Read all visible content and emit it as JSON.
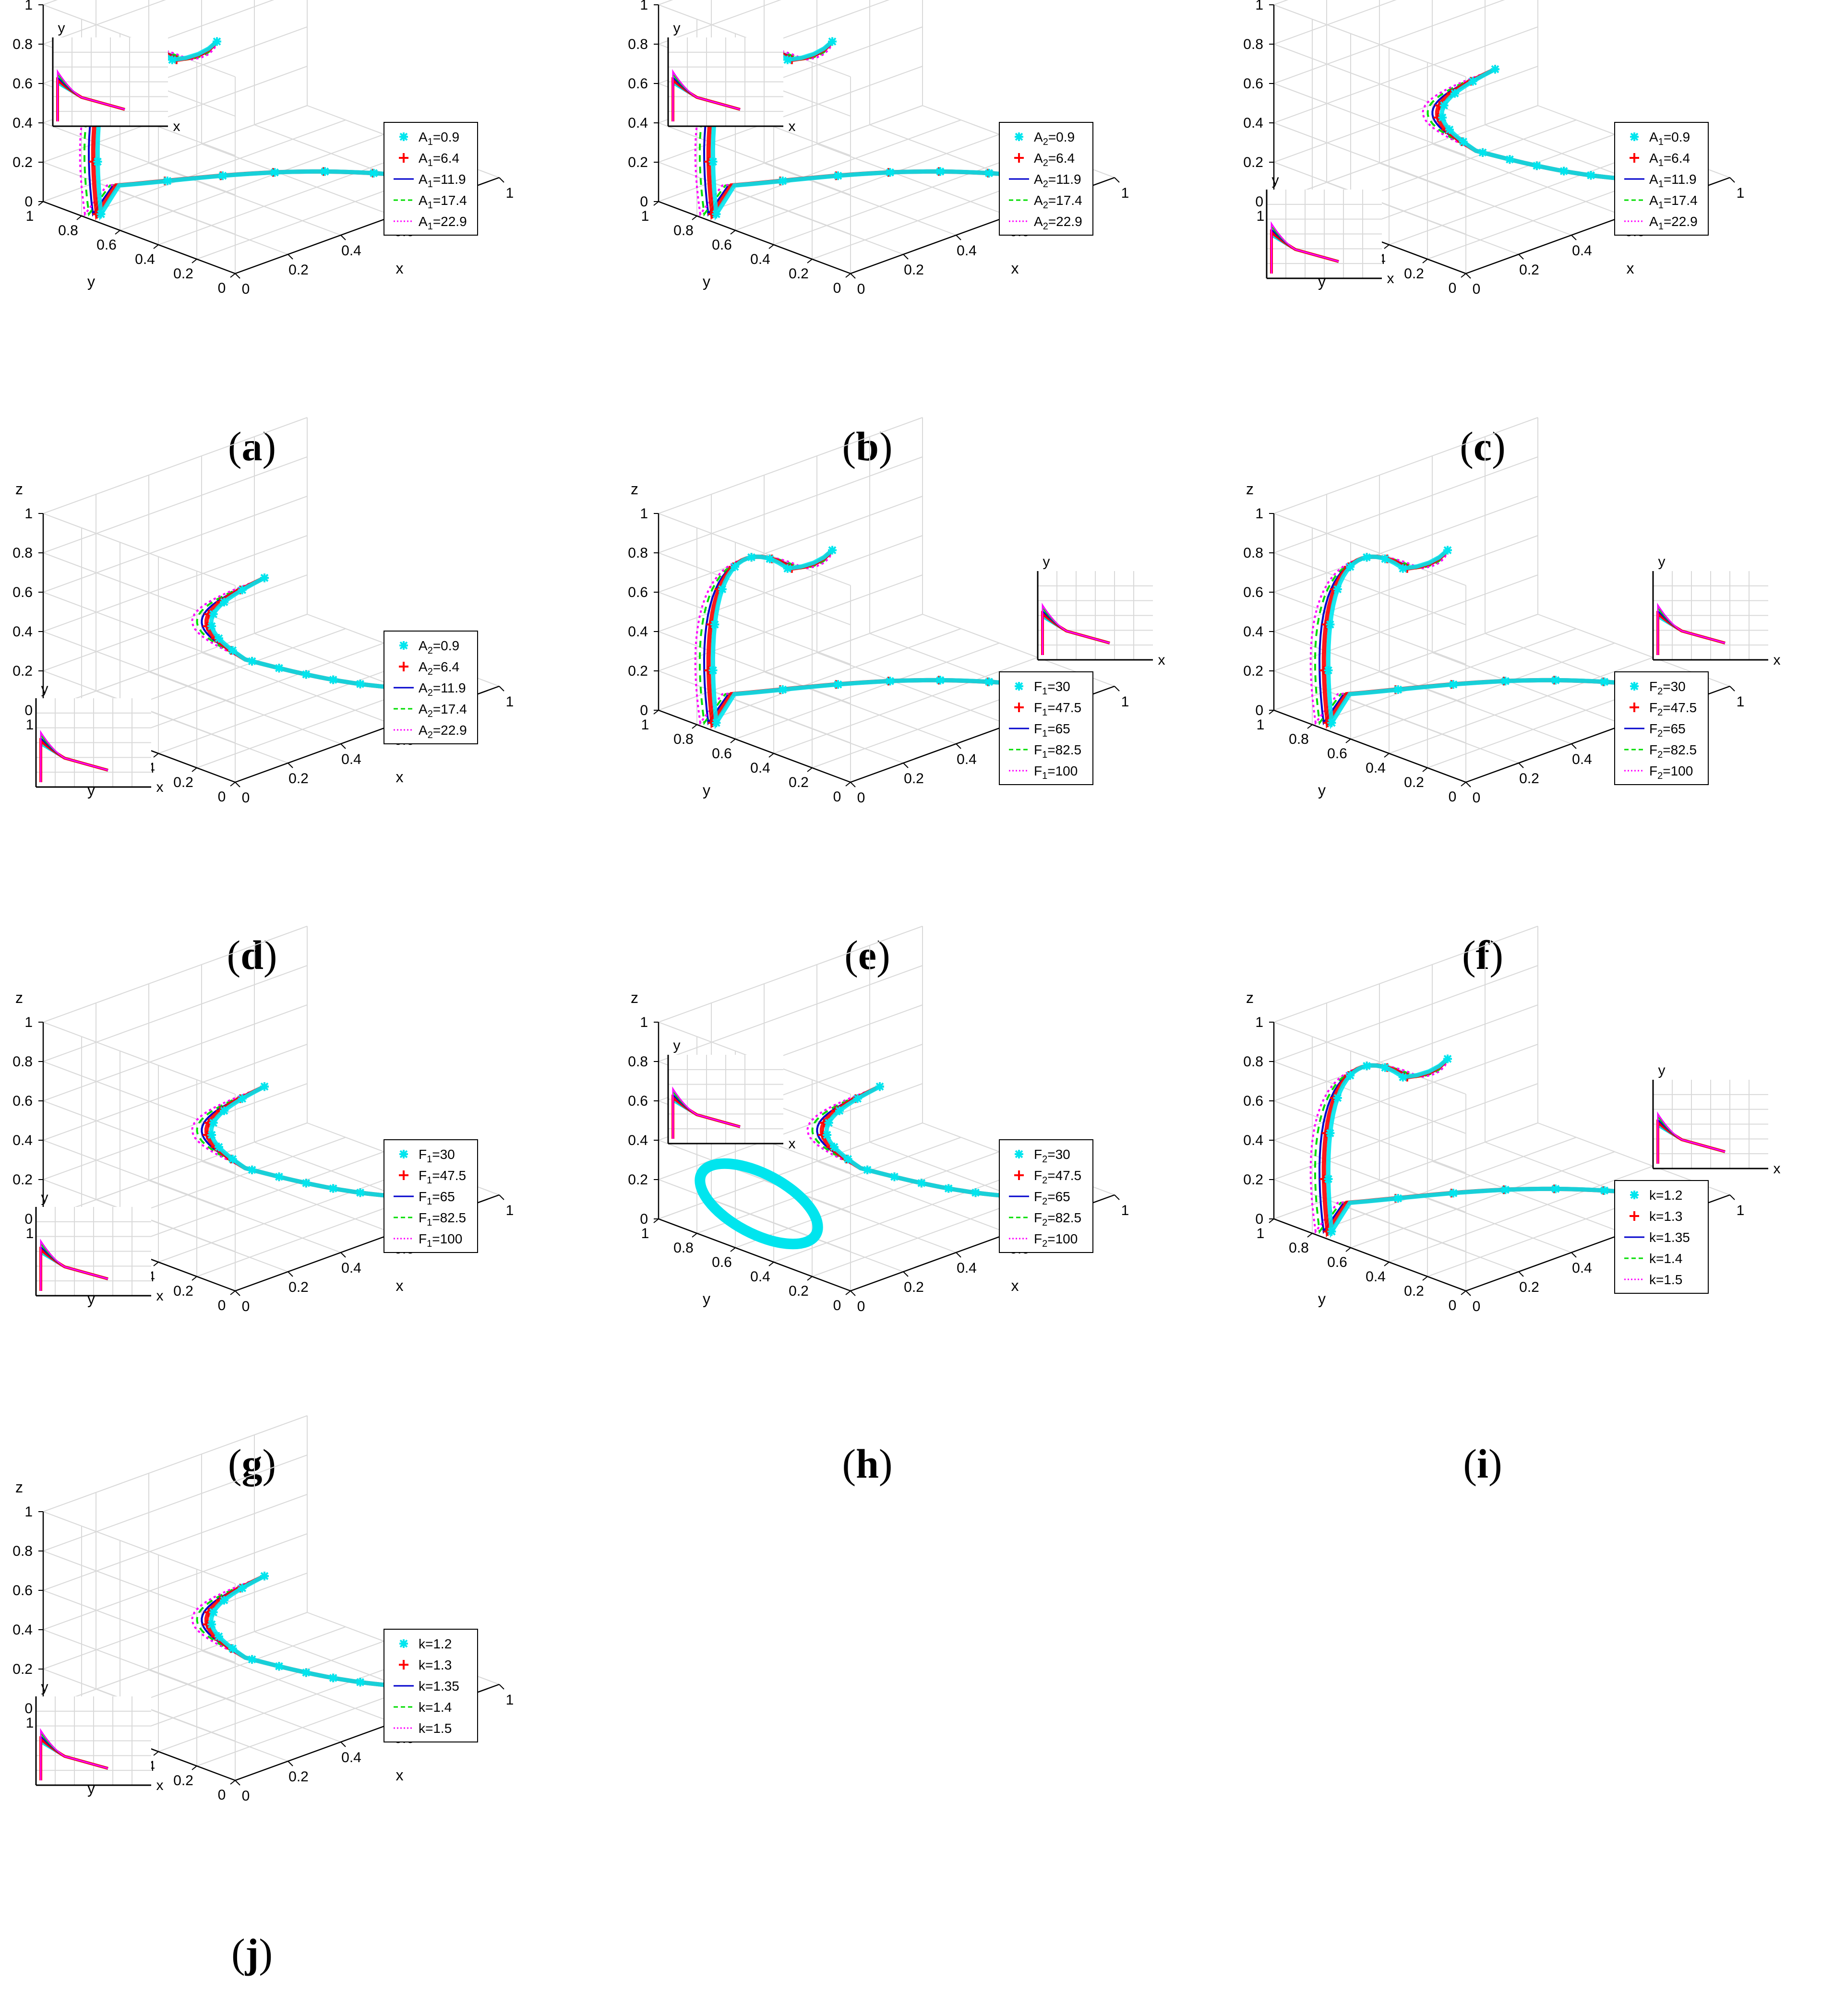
{
  "figure": {
    "panels": [
      {
        "id": "a",
        "caption_letter": "a",
        "param": "A",
        "sub": "1",
        "legend": [
          "0.9",
          "6.4",
          "11.9",
          "17.4",
          "22.9"
        ],
        "shape": "loop",
        "inset": "top-left",
        "legend_pos": "right",
        "variant": "a"
      },
      {
        "id": "b",
        "caption_letter": "b",
        "param": "A",
        "sub": "2",
        "legend": [
          "0.9",
          "6.4",
          "11.9",
          "17.4",
          "22.9"
        ],
        "shape": "loop",
        "inset": "top-left",
        "legend_pos": "right",
        "variant": "b"
      },
      {
        "id": "c",
        "caption_letter": "c",
        "param": "A",
        "sub": "1",
        "legend": [
          "0.9",
          "6.4",
          "11.9",
          "17.4",
          "22.9"
        ],
        "shape": "hook",
        "inset": "bottom-left",
        "legend_pos": "right",
        "variant": "c"
      },
      {
        "id": "d",
        "caption_letter": "d",
        "param": "A",
        "sub": "2",
        "legend": [
          "0.9",
          "6.4",
          "11.9",
          "17.4",
          "22.9"
        ],
        "shape": "hook",
        "inset": "bottom-left",
        "legend_pos": "right",
        "variant": "d"
      },
      {
        "id": "e",
        "caption_letter": "e",
        "param": "F",
        "sub": "1",
        "legend": [
          "30",
          "47.5",
          "65",
          "82.5",
          "100"
        ],
        "shape": "loop",
        "inset": "top-right",
        "legend_pos": "right-low",
        "variant": "e"
      },
      {
        "id": "f",
        "caption_letter": "f",
        "param": "F",
        "sub": "2",
        "legend": [
          "30",
          "47.5",
          "65",
          "82.5",
          "100"
        ],
        "shape": "loop",
        "inset": "top-right",
        "legend_pos": "right-low",
        "variant": "f"
      },
      {
        "id": "g",
        "caption_letter": "g",
        "param": "F",
        "sub": "1",
        "legend": [
          "30",
          "47.5",
          "65",
          "82.5",
          "100"
        ],
        "shape": "hook",
        "inset": "bottom-left",
        "legend_pos": "right",
        "variant": "g"
      },
      {
        "id": "h",
        "caption_letter": "h",
        "param": "F",
        "sub": "2",
        "legend": [
          "30",
          "47.5",
          "65",
          "82.5",
          "100"
        ],
        "shape": "hook-ellipse",
        "inset": "top-left",
        "legend_pos": "right",
        "variant": "h"
      },
      {
        "id": "i",
        "caption_letter": "i",
        "param": "k",
        "sub": "",
        "legend": [
          "1.2",
          "1.3",
          "1.35",
          "1.4",
          "1.5"
        ],
        "shape": "loop",
        "inset": "top-right",
        "legend_pos": "right-low",
        "variant": "i"
      },
      {
        "id": "j",
        "caption_letter": "j",
        "param": "k",
        "sub": "",
        "legend": [
          "1.2",
          "1.3",
          "1.35",
          "1.4",
          "1.5"
        ],
        "shape": "hook",
        "inset": "bottom-left",
        "legend_pos": "right",
        "variant": "j"
      }
    ]
  },
  "axes": {
    "xlabel": "x",
    "ylabel": "y",
    "zlabel": "z",
    "ticks": [
      "0",
      "0.2",
      "0.4",
      "0.6",
      "0.8",
      "1"
    ],
    "xlim": [
      0,
      1
    ],
    "ylim": [
      0,
      1
    ],
    "zlim": [
      0,
      1
    ],
    "grid": true
  },
  "inset_axes": {
    "xlabel": "x",
    "ylabel": "y"
  },
  "colors": {
    "cyan": "#00E5EE",
    "red": "#FF0000",
    "blue": "#0000CC",
    "green": "#00DD00",
    "magenta": "#FF00FF",
    "grid": "#d9d9d9",
    "axis": "#000000"
  },
  "chart_data": [
    {
      "type": "line",
      "panel": "a",
      "xlabel": "x",
      "ylabel": "y",
      "zlabel": "z",
      "xlim": [
        0,
        1
      ],
      "ylim": [
        0,
        1
      ],
      "zlim": [
        0,
        1
      ],
      "series_names": [
        "A1=0.9",
        "A1=6.4",
        "A1=11.9",
        "A1=17.4",
        "A1=22.9"
      ]
    },
    {
      "type": "line",
      "panel": "b",
      "xlabel": "x",
      "ylabel": "y",
      "zlabel": "z",
      "xlim": [
        0,
        1
      ],
      "ylim": [
        0,
        1
      ],
      "zlim": [
        0,
        1
      ],
      "series_names": [
        "A2=0.9",
        "A2=6.4",
        "A2=11.9",
        "A2=17.4",
        "A2=22.9"
      ]
    },
    {
      "type": "line",
      "panel": "c",
      "xlabel": "x",
      "ylabel": "y",
      "zlabel": "z",
      "xlim": [
        0,
        1
      ],
      "ylim": [
        0,
        1
      ],
      "zlim": [
        0,
        1
      ],
      "series_names": [
        "A1=0.9",
        "A1=6.4",
        "A1=11.9",
        "A1=17.4",
        "A1=22.9"
      ]
    },
    {
      "type": "line",
      "panel": "d",
      "xlabel": "x",
      "ylabel": "y",
      "zlabel": "z",
      "xlim": [
        0,
        1
      ],
      "ylim": [
        0,
        1
      ],
      "zlim": [
        0,
        1
      ],
      "series_names": [
        "A2=0.9",
        "A2=6.4",
        "A2=11.9",
        "A2=17.4",
        "A2=22.9"
      ]
    },
    {
      "type": "line",
      "panel": "e",
      "xlabel": "x",
      "ylabel": "y",
      "zlabel": "z",
      "xlim": [
        0,
        1
      ],
      "ylim": [
        0,
        1
      ],
      "zlim": [
        0,
        1
      ],
      "series_names": [
        "F1=30",
        "F1=47.5",
        "F1=65",
        "F1=82.5",
        "F1=100"
      ]
    },
    {
      "type": "line",
      "panel": "f",
      "xlabel": "x",
      "ylabel": "y",
      "zlabel": "z",
      "xlim": [
        0,
        1
      ],
      "ylim": [
        0,
        1
      ],
      "zlim": [
        0,
        1
      ],
      "series_names": [
        "F2=30",
        "F2=47.5",
        "F2=65",
        "F2=82.5",
        "F2=100"
      ]
    },
    {
      "type": "line",
      "panel": "g",
      "xlabel": "x",
      "ylabel": "y",
      "zlabel": "z",
      "xlim": [
        0,
        1
      ],
      "ylim": [
        0,
        1
      ],
      "zlim": [
        0,
        1
      ],
      "series_names": [
        "F1=30",
        "F1=47.5",
        "F1=65",
        "F1=82.5",
        "F1=100"
      ]
    },
    {
      "type": "line",
      "panel": "h",
      "xlabel": "x",
      "ylabel": "y",
      "zlabel": "z",
      "xlim": [
        0,
        1
      ],
      "ylim": [
        0,
        1
      ],
      "zlim": [
        0,
        1
      ],
      "series_names": [
        "F2=30",
        "F2=47.5",
        "F2=65",
        "F2=82.5",
        "F2=100"
      ]
    },
    {
      "type": "line",
      "panel": "i",
      "xlabel": "x",
      "ylabel": "y",
      "zlabel": "z",
      "xlim": [
        0,
        1
      ],
      "ylim": [
        0,
        1
      ],
      "zlim": [
        0,
        1
      ],
      "series_names": [
        "k=1.2",
        "k=1.3",
        "k=1.35",
        "k=1.4",
        "k=1.5"
      ]
    },
    {
      "type": "line",
      "panel": "j",
      "xlabel": "x",
      "ylabel": "y",
      "zlabel": "z",
      "xlim": [
        0,
        1
      ],
      "ylim": [
        0,
        1
      ],
      "zlim": [
        0,
        1
      ],
      "series_names": [
        "k=1.2",
        "k=1.3",
        "k=1.35",
        "k=1.4",
        "k=1.5"
      ]
    }
  ]
}
